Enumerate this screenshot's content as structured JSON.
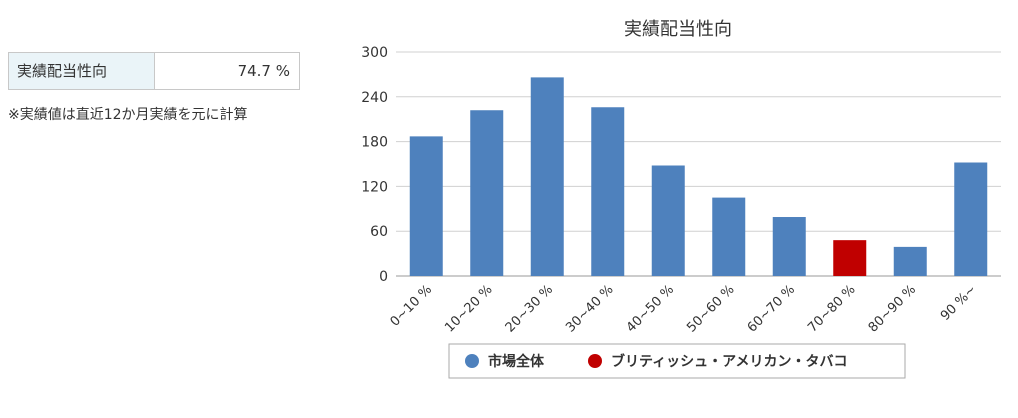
{
  "summary": {
    "label": "実績配当性向",
    "value": "74.7 %",
    "note": "※実績値は直近12か月実績を元に計算"
  },
  "chart_data": {
    "type": "bar",
    "title": "実績配当性向",
    "categories": [
      "0~10 %",
      "10~20 %",
      "20~30 %",
      "30~40 %",
      "40~50 %",
      "50~60 %",
      "60~70 %",
      "70~80 %",
      "80~90 %",
      "90 %~"
    ],
    "values": [
      187,
      222,
      266,
      226,
      148,
      105,
      79,
      48,
      39,
      152
    ],
    "highlight_index": 7,
    "ylim": [
      0,
      300
    ],
    "yticks": [
      0,
      60,
      120,
      180,
      240,
      300
    ],
    "grid": true,
    "legend_position": "bottom",
    "legend": [
      {
        "name": "市場全体",
        "color": "#4e81bd"
      },
      {
        "name": "ブリティッシュ・アメリカン・タバコ",
        "color": "#c00000"
      }
    ],
    "colors": {
      "bar": "#4e81bd",
      "highlight": "#c00000"
    }
  }
}
